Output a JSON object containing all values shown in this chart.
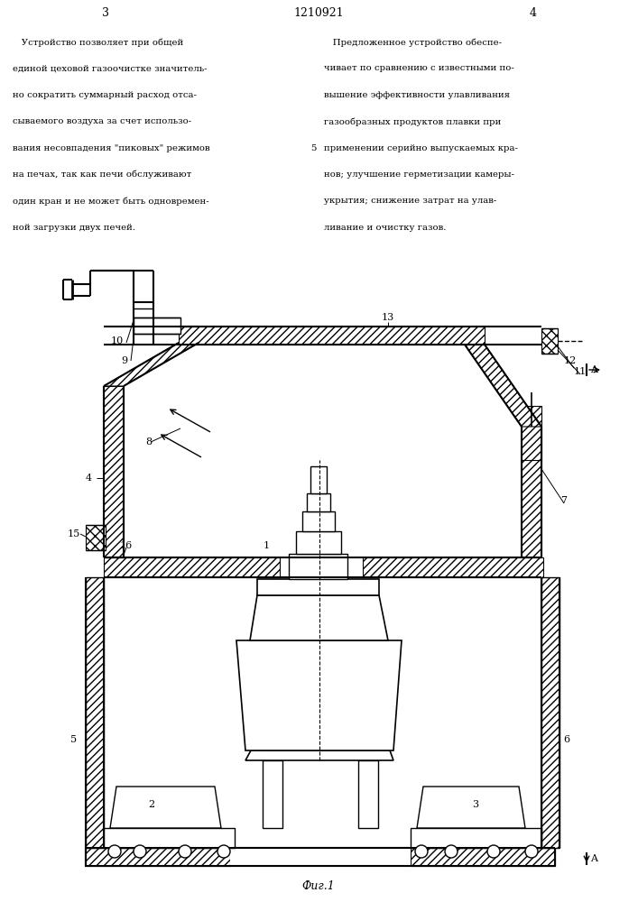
{
  "bg_color": "#ffffff",
  "title": "1210921",
  "page_left": "3",
  "page_right": "4",
  "fig_caption": "Фиг.1",
  "text_left_lines": [
    "   Устройство позволяет при общей",
    "единой цеховой газоочистке значитель-",
    "но сократить суммарный расход отса-",
    "сываемого воздуха за счет использо-",
    "вания несовпадения \"пиковых\" режимов",
    "на печах, так как печи обслуживают",
    "один кран и не может быть одновремен-",
    "ной загрузки двух печей."
  ],
  "text_right_lines": [
    "   Предложенное устройство обеспе-",
    "чивает по сравнению с известными по-",
    "вышение эффективности улавливания",
    "газообразных продуктов плавки при",
    "применении серийно выпускаемых кра-",
    "нов; улучшение герметизации камеры-",
    "укрытия; снижение затрат на улав-",
    "ливание и очистку газов."
  ],
  "line_num": "5"
}
